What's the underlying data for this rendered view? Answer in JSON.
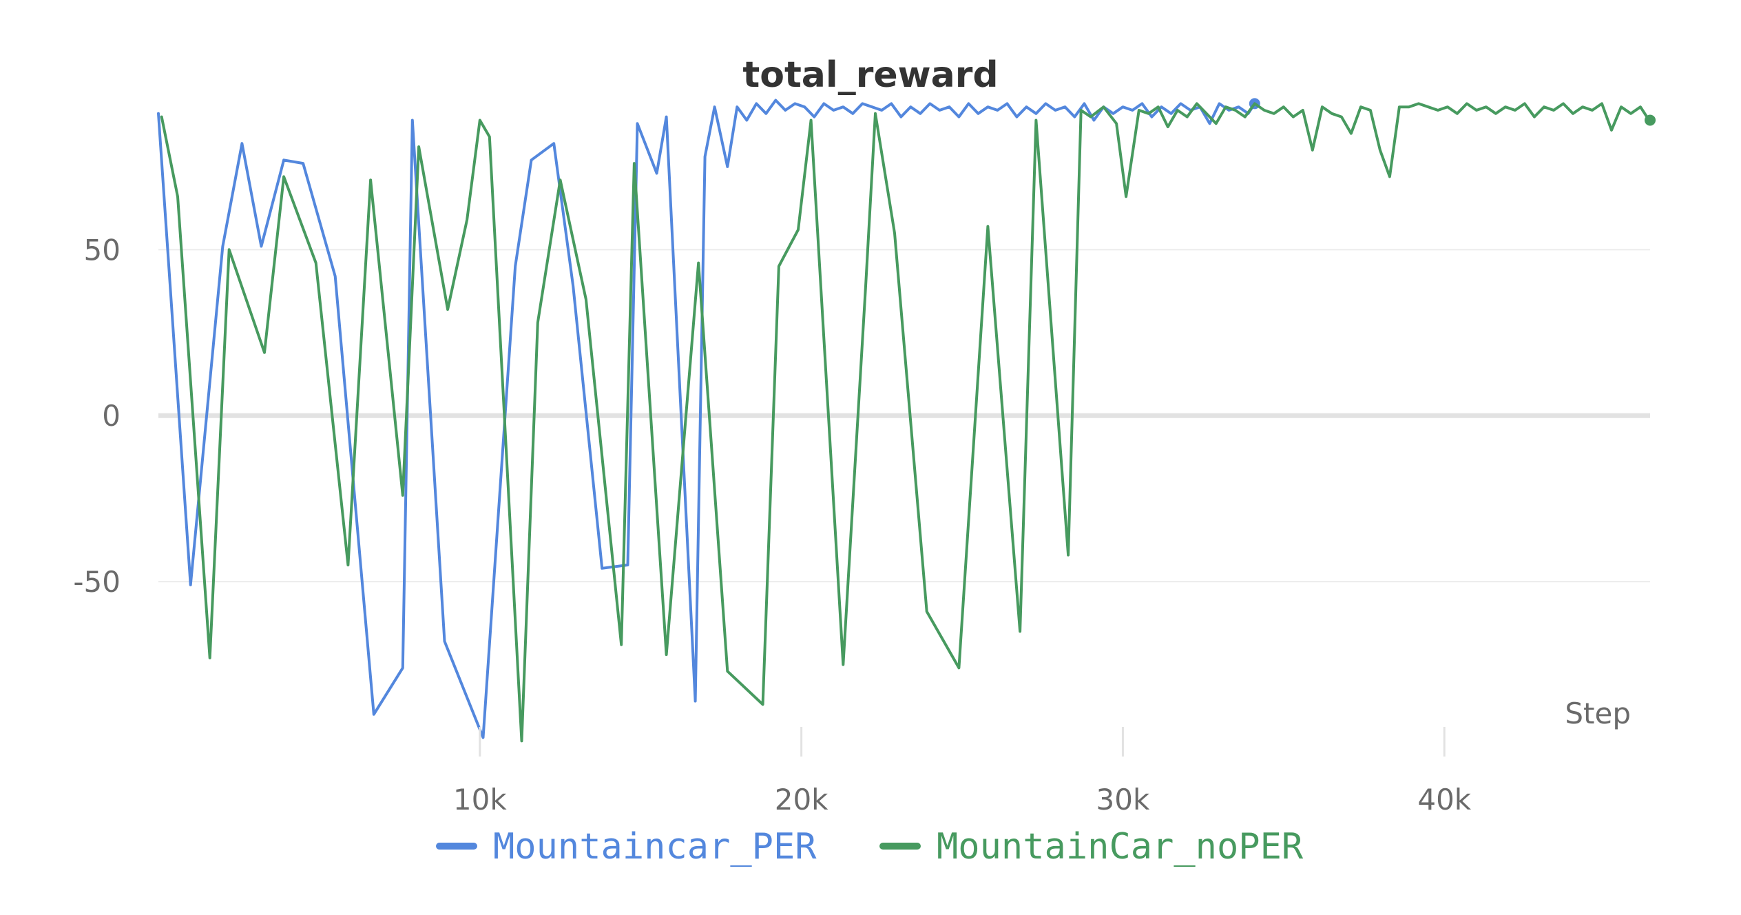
{
  "chart_data": {
    "type": "line",
    "title": "total_reward",
    "xlabel": "Step",
    "ylabel": "",
    "xlim": [
      0,
      46400
    ],
    "ylim": [
      -100,
      92
    ],
    "x_ticks": [
      10000,
      20000,
      30000,
      40000
    ],
    "x_tick_labels": [
      "10k",
      "20k",
      "30k",
      "40k"
    ],
    "y_ticks": [
      -50,
      0,
      50
    ],
    "y_tick_labels": [
      "-50",
      "0",
      "50"
    ],
    "grid": true,
    "legend_position": "bottom",
    "series": [
      {
        "name": "Mountaincar_PER",
        "color": "#5387dd",
        "x": [
          0,
          1000,
          2000,
          2600,
          3200,
          3900,
          4500,
          5500,
          6700,
          7600,
          7900,
          8900,
          10100,
          11100,
          11600,
          12300,
          12900,
          13800,
          14600,
          14900,
          15500,
          15800,
          16700,
          17000,
          17300,
          17700,
          18000,
          18300,
          18600,
          18900,
          19200,
          19500,
          19800,
          20100,
          20400,
          20700,
          21000,
          21300,
          21600,
          21900,
          22200,
          22500,
          22800,
          23100,
          23400,
          23700,
          24000,
          24300,
          24600,
          24900,
          25200,
          25500,
          25800,
          26100,
          26400,
          26700,
          27000,
          27300,
          27600,
          27900,
          28200,
          28500,
          28800,
          29100,
          29400,
          29700,
          30000,
          30300,
          30600,
          30900,
          31200,
          31500,
          31800,
          32100,
          32400,
          32700,
          33000,
          33300,
          33600,
          33900,
          34100
        ],
        "y": [
          91,
          -51,
          51,
          82,
          51,
          77,
          76,
          42,
          -90,
          -76,
          89,
          -68,
          -97,
          45,
          77,
          82,
          39,
          -46,
          -45,
          88,
          73,
          90,
          -86,
          78,
          93,
          75,
          93,
          89,
          94,
          91,
          95,
          92,
          94,
          93,
          90,
          94,
          92,
          93,
          91,
          94,
          93,
          92,
          94,
          90,
          93,
          91,
          94,
          92,
          93,
          90,
          94,
          91,
          93,
          92,
          94,
          90,
          93,
          91,
          94,
          92,
          93,
          90,
          94,
          89,
          93,
          91,
          93,
          92,
          94,
          90,
          93,
          91,
          94,
          92,
          93,
          88,
          94,
          92,
          93,
          91,
          94
        ]
      },
      {
        "name": "MountainCar_noPER",
        "color": "#479a5f",
        "x": [
          100,
          600,
          1600,
          2200,
          3300,
          3900,
          4900,
          5900,
          6600,
          7600,
          8100,
          9000,
          9600,
          10000,
          10300,
          11300,
          11800,
          12500,
          13300,
          14400,
          14800,
          15800,
          16800,
          17700,
          18800,
          19300,
          19900,
          20300,
          21300,
          22000,
          22300,
          22900,
          23900,
          24900,
          25800,
          26800,
          27300,
          28300,
          28700,
          29000,
          29400,
          29800,
          30100,
          30500,
          30800,
          31100,
          31400,
          31700,
          32000,
          32300,
          32600,
          32900,
          33200,
          33500,
          33800,
          34100,
          34400,
          34700,
          35000,
          35300,
          35600,
          35900,
          36200,
          36500,
          36800,
          37100,
          37400,
          37700,
          38000,
          38300,
          38600,
          38900,
          39200,
          39500,
          39800,
          40100,
          40400,
          40700,
          41000,
          41300,
          41600,
          41900,
          42200,
          42500,
          42800,
          43100,
          43400,
          43700,
          44000,
          44300,
          44600,
          44900,
          45200,
          45500,
          45800,
          46100,
          46300,
          46400
        ],
        "y": [
          90,
          66,
          -73,
          50,
          19,
          72,
          46,
          -45,
          71,
          -24,
          81,
          32,
          59,
          89,
          84,
          -98,
          28,
          71,
          35,
          -69,
          76,
          -72,
          46,
          -77,
          -87,
          45,
          56,
          89,
          -75,
          39,
          91,
          55,
          -59,
          -76,
          57,
          -65,
          89,
          -42,
          92,
          90,
          93,
          88,
          66,
          92,
          91,
          93,
          87,
          92,
          90,
          94,
          91,
          88,
          93,
          92,
          90,
          94,
          92,
          91,
          93,
          90,
          92,
          80,
          93,
          91,
          90,
          85,
          93,
          92,
          80,
          72,
          93,
          93,
          94,
          93,
          92,
          93,
          91,
          94,
          92,
          93,
          91,
          93,
          92,
          94,
          90,
          93,
          92,
          94,
          91,
          93,
          92,
          94,
          86,
          93,
          91,
          93,
          90,
          89
        ]
      }
    ]
  }
}
